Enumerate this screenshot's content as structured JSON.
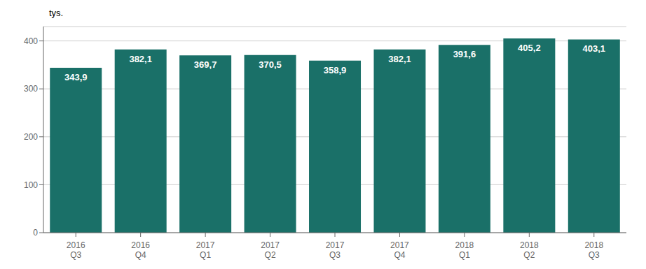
{
  "chart_data": {
    "type": "bar",
    "ylabel": "tys.",
    "categories": [
      "2016\nQ3",
      "2016\nQ4",
      "2017\nQ1",
      "2017\nQ2",
      "2017\nQ3",
      "2017\nQ4",
      "2018\nQ1",
      "2018\nQ2",
      "2018\nQ3"
    ],
    "values": [
      343.9,
      382.1,
      369.7,
      370.5,
      358.9,
      382.1,
      391.6,
      405.2,
      403.1
    ],
    "value_labels": [
      "343,9",
      "382,1",
      "369,7",
      "370,5",
      "358,9",
      "382,1",
      "391,6",
      "405,2",
      "403,1"
    ],
    "data_labels": true,
    "color": "#1a7068",
    "ylim": [
      0,
      430
    ],
    "yticks": [
      0,
      100,
      200,
      300,
      400
    ],
    "grid": true
  }
}
